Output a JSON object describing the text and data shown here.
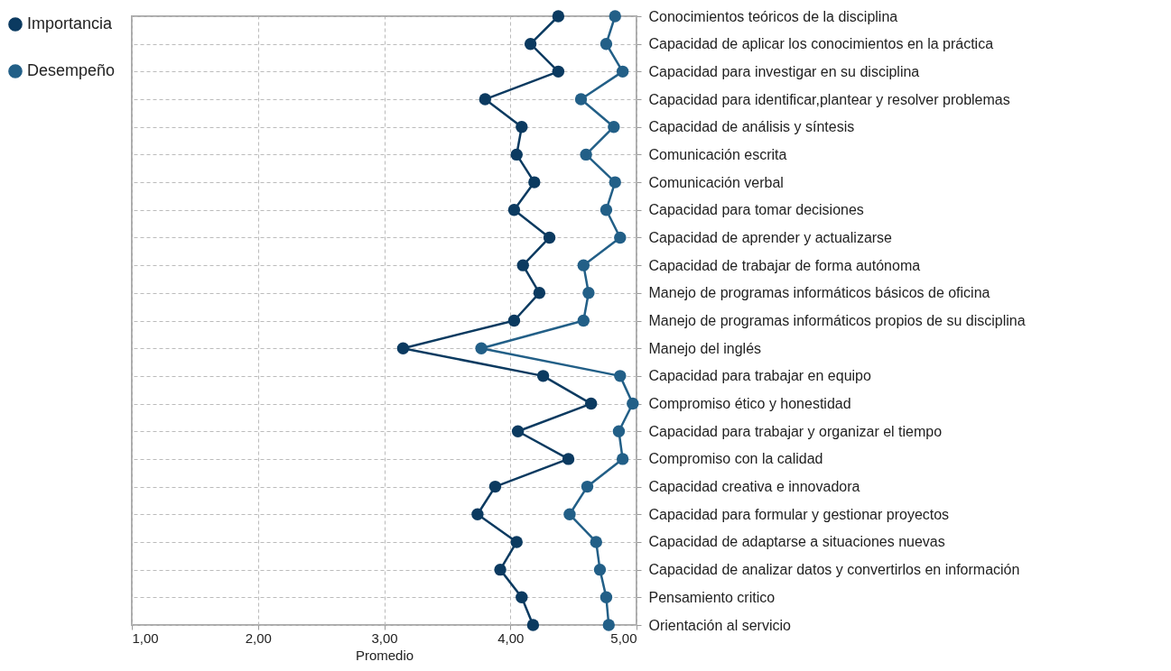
{
  "chart_data": {
    "type": "line",
    "orientation": "horizontal",
    "xlabel": "Promedio",
    "categories": [
      "Conocimientos teóricos de la disciplina",
      "Capacidad de aplicar los conocimientos en la práctica",
      "Capacidad para investigar en su disciplina",
      "Capacidad para identificar,plantear y resolver problemas",
      "Capacidad de análisis y síntesis",
      "Comunicación escrita",
      "Comunicación verbal",
      "Capacidad para tomar decisiones",
      "Capacidad de aprender y actualizarse",
      "Capacidad de trabajar de forma autónoma",
      "Manejo de programas informáticos básicos de oficina",
      "Manejo de programas informáticos propios de su disciplina",
      "Manejo del inglés",
      "Capacidad para trabajar en equipo",
      "Compromiso ético y honestidad",
      "Capacidad para trabajar y organizar el tiempo",
      "Compromiso con la calidad",
      "Capacidad creativa e innovadora",
      "Capacidad para formular y gestionar proyectos",
      "Capacidad de adaptarse a situaciones nuevas",
      "Capacidad de analizar datos y convertirlos en información",
      "Pensamiento critico",
      "Orientación al servicio"
    ],
    "series": [
      {
        "name": "Importancia",
        "color": "#0b3a60",
        "values": [
          4.38,
          4.16,
          4.38,
          3.8,
          4.09,
          4.05,
          4.19,
          4.03,
          4.31,
          4.1,
          4.23,
          4.03,
          3.15,
          4.26,
          4.64,
          4.06,
          4.46,
          3.88,
          3.74,
          4.05,
          3.92,
          4.09,
          4.18
        ]
      },
      {
        "name": "Desempeño",
        "color": "#225f87",
        "values": [
          4.83,
          4.76,
          4.89,
          4.56,
          4.82,
          4.6,
          4.83,
          4.76,
          4.87,
          4.58,
          4.62,
          4.58,
          3.77,
          4.87,
          4.97,
          4.86,
          4.89,
          4.61,
          4.47,
          4.68,
          4.71,
          4.76,
          4.78
        ]
      }
    ],
    "xlim": [
      1,
      5
    ],
    "xticks": [
      {
        "value": 1,
        "label": "1,00"
      },
      {
        "value": 2,
        "label": "2,00"
      },
      {
        "value": 3,
        "label": "3,00"
      },
      {
        "value": 4,
        "label": "4,00"
      },
      {
        "value": 5,
        "label": "5,00"
      }
    ],
    "grid": true,
    "legend": "left",
    "marker": "circle",
    "line_style": "solid"
  }
}
